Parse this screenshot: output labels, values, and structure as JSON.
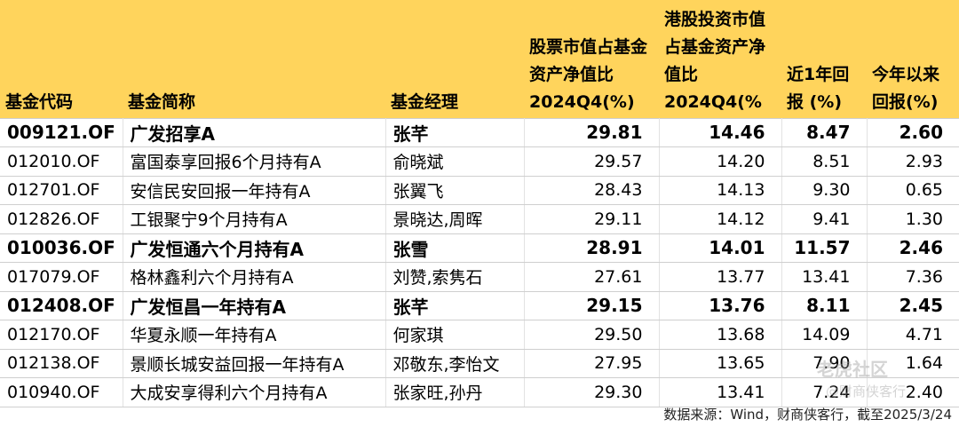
{
  "headers": {
    "code": "基金代码",
    "name": "基金简称",
    "manager": "基金经理",
    "stock_ratio": "股票市值占基金资产净值比2024Q4(%)",
    "hk_ratio": "港股投资市值占基金资产净值比2024Q4(%",
    "return_1y": "近1年回报 (%)",
    "return_ytd": "今年以来回报(%)"
  },
  "rows": [
    {
      "code": "009121.OF",
      "name": "广发招享A",
      "manager": "张芊",
      "stock_ratio": "29.81",
      "hk_ratio": "14.46",
      "return_1y": "8.47",
      "return_ytd": "2.60",
      "highlight": true
    },
    {
      "code": "012010.OF",
      "name": "富国泰享回报6个月持有A",
      "manager": "俞晓斌",
      "stock_ratio": "29.57",
      "hk_ratio": "14.20",
      "return_1y": "8.51",
      "return_ytd": "2.93",
      "highlight": false
    },
    {
      "code": "012701.OF",
      "name": "安信民安回报一年持有A",
      "manager": "张翼飞",
      "stock_ratio": "28.43",
      "hk_ratio": "14.13",
      "return_1y": "9.30",
      "return_ytd": "0.65",
      "highlight": false
    },
    {
      "code": "012826.OF",
      "name": "工银聚宁9个月持有A",
      "manager": "景晓达,周晖",
      "stock_ratio": "29.11",
      "hk_ratio": "14.12",
      "return_1y": "9.41",
      "return_ytd": "1.30",
      "highlight": false
    },
    {
      "code": "010036.OF",
      "name": "广发恒通六个月持有A",
      "manager": "张雪",
      "stock_ratio": "28.91",
      "hk_ratio": "14.01",
      "return_1y": "11.57",
      "return_ytd": "2.46",
      "highlight": true
    },
    {
      "code": "017079.OF",
      "name": "格林鑫利六个月持有A",
      "manager": "刘赞,索隽石",
      "stock_ratio": "27.61",
      "hk_ratio": "13.77",
      "return_1y": "13.41",
      "return_ytd": "7.36",
      "highlight": false
    },
    {
      "code": "012408.OF",
      "name": "广发恒昌一年持有A",
      "manager": "张芊",
      "stock_ratio": "29.15",
      "hk_ratio": "13.76",
      "return_1y": "8.11",
      "return_ytd": "2.45",
      "highlight": true
    },
    {
      "code": "012170.OF",
      "name": "华夏永顺一年持有A",
      "manager": "何家琪",
      "stock_ratio": "29.50",
      "hk_ratio": "13.68",
      "return_1y": "14.09",
      "return_ytd": "4.71",
      "highlight": false
    },
    {
      "code": "012138.OF",
      "name": "景顺长城安益回报一年持有A",
      "manager": "邓敬东,李怡文",
      "stock_ratio": "27.95",
      "hk_ratio": "13.65",
      "return_1y": "7.90",
      "return_ytd": "1.64",
      "highlight": false
    },
    {
      "code": "010940.OF",
      "name": "大成安享得利六个月持有A",
      "manager": "张家旺,孙丹",
      "stock_ratio": "29.30",
      "hk_ratio": "13.41",
      "return_1y": "7.24",
      "return_ytd": "2.40",
      "highlight": false
    }
  ],
  "footer": "数据来源：Wind，财商侠客行，截至2025/3/24",
  "watermark": "老虎社区",
  "watermark2": "@财商侠客行",
  "colors": {
    "header_bg": "#FFD45C"
  }
}
